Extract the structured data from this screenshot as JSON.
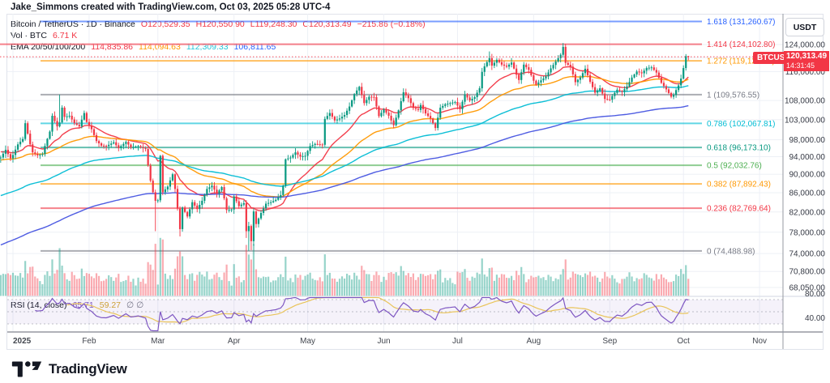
{
  "header": {
    "attribution": "Jake_Simmons created with TradingView.com, Oct 03, 2025 05:28 UTC-4"
  },
  "legend": {
    "symbol": "Bitcoin / TetherUS · 1D · Binance",
    "ohlc": {
      "o_label": "O",
      "o": "120,529.35",
      "h_label": "H",
      "h": "120,550.90",
      "l_label": "L",
      "l": "119,248.30",
      "c_label": "C",
      "c": "120,313.49",
      "change": "−215.86 (−0.18%)"
    },
    "volume": {
      "label": "Vol · BTC",
      "value": "6.71 K"
    },
    "ema": {
      "label": "EMA 20/50/100/200",
      "values": [
        {
          "text": "114,835.86",
          "color": "#F23645"
        },
        {
          "text": "114,094.63",
          "color": "#FF9800"
        },
        {
          "text": "112,309.33",
          "color": "#26C6DA"
        },
        {
          "text": "106,811.65",
          "color": "#2962FF"
        }
      ]
    }
  },
  "rsi_legend": {
    "label": "RSI (14, close)",
    "value": "65.71",
    "ma_value": "59.27",
    "empty": "∅  ∅"
  },
  "price_axis": {
    "unit": "USDT",
    "badge": {
      "symbol": "BTCUSDT",
      "price": "120,313.49",
      "time": "14:31:45"
    },
    "ticks": [
      {
        "label": "124,000.00",
        "price": 124000
      },
      {
        "label": "116,000.00",
        "price": 116000
      },
      {
        "label": "108,000.00",
        "price": 108000
      },
      {
        "label": "103,000.00",
        "price": 103000
      },
      {
        "label": "98,000.00",
        "price": 98000
      },
      {
        "label": "94,000.00",
        "price": 94000
      },
      {
        "label": "90,000.00",
        "price": 90000
      },
      {
        "label": "86,000.00",
        "price": 86000
      },
      {
        "label": "82,000.00",
        "price": 82000
      },
      {
        "label": "78,000.00",
        "price": 78000
      },
      {
        "label": "74,000.00",
        "price": 74000
      },
      {
        "label": "70,800.00",
        "price": 70800
      },
      {
        "label": "68,050.00",
        "price": 68050
      }
    ],
    "grid_extra": [
      120000
    ]
  },
  "rsi_axis": {
    "ticks": [
      {
        "label": "80.00",
        "value": 80
      },
      {
        "label": "40.00",
        "value": 40
      }
    ]
  },
  "time_axis": {
    "labels": [
      {
        "text": "2025",
        "day": 0,
        "bold": true
      },
      {
        "text": "Feb",
        "day": 31
      },
      {
        "text": "Mar",
        "day": 59
      },
      {
        "text": "Apr",
        "day": 90
      },
      {
        "text": "May",
        "day": 120
      },
      {
        "text": "Jun",
        "day": 151
      },
      {
        "text": "Jul",
        "day": 181
      },
      {
        "text": "Aug",
        "day": 212
      },
      {
        "text": "Sep",
        "day": 243
      },
      {
        "text": "Oct",
        "day": 273
      },
      {
        "text": "Nov",
        "day": 304
      }
    ]
  },
  "footer": {
    "brand": "TradingView"
  },
  "colors": {
    "up": "#089981",
    "down": "#F23645",
    "grid": "#EDF0F6",
    "axis_line": "#9598A1",
    "frame": "#E0E3EB",
    "text": "#363A45",
    "rsi_line": "#7E57C2",
    "rsi_ma": "#E9C45A",
    "band_fill": "rgba(126,87,194,0.08)",
    "band_edge": "#787B86"
  },
  "chart_data": {
    "type": "candlestick",
    "symbol": "BTCUSDT",
    "exchange": "Binance",
    "interval": "1D",
    "scale": "log",
    "last_bar": {
      "open": 120529.35,
      "high": 120550.9,
      "low": 119248.3,
      "close": 120313.49,
      "change": -215.86,
      "change_pct": -0.18,
      "volume": "6.71 K"
    },
    "fib_levels": [
      {
        "level": "1.618",
        "price": 131260.67,
        "label": "1.618 (131,260.67)",
        "color": "#2962FF",
        "full": false
      },
      {
        "level": "1.414",
        "price": 124102.8,
        "label": "1.414 (124,102.80)",
        "color": "#F23645",
        "full": true
      },
      {
        "level": "1.272",
        "price": 119120.97,
        "label": "1.272 (119,120.97)",
        "color": "#FF9800",
        "full": false
      },
      {
        "level": "1",
        "price": 109576.55,
        "label": "1 (109,576.55)",
        "color": "#787B86",
        "full": false
      },
      {
        "level": "0.786",
        "price": 102067.81,
        "label": "0.786 (102,067.81)",
        "color": "#00BCD4",
        "full": false
      },
      {
        "level": "0.618",
        "price": 96173.1,
        "label": "0.618 (96,173.10)",
        "color": "#089981",
        "full": false
      },
      {
        "level": "0.5",
        "price": 92032.76,
        "label": "0.5 (92,032.76)",
        "color": "#4CAF50",
        "full": false
      },
      {
        "level": "0.382",
        "price": 87892.43,
        "label": "0.382 (87,892.43)",
        "color": "#FF9800",
        "full": false
      },
      {
        "level": "0.236",
        "price": 82769.64,
        "label": "0.236 (82,769.64)",
        "color": "#F23645",
        "full": false
      },
      {
        "level": "0",
        "price": 74488.98,
        "label": "0 (74,488.98)",
        "color": "#787B86",
        "full": false
      }
    ],
    "current_price": 120313.49,
    "ema": {
      "periods": [
        20,
        50,
        100,
        200
      ],
      "colors": [
        "#F23645",
        "#FF9800",
        "#00BCD4",
        "#4553E0"
      ],
      "seeds": [
        95.3,
        93.2,
        85.2,
        75.4
      ],
      "last_values": [
        114835.86,
        114094.63,
        112309.33,
        106811.65
      ]
    },
    "rsi": {
      "period": 14,
      "current": 65.71,
      "ma_current": 59.27,
      "band": [
        30,
        70
      ],
      "mid": 50
    },
    "day_range": [
      -5,
      275
    ],
    "close_anchors_k": [
      [
        -5,
        93.8
      ],
      [
        -3,
        95.6
      ],
      [
        -1,
        93.6
      ],
      [
        0,
        94.4
      ],
      [
        2,
        96.9
      ],
      [
        4,
        98.2
      ],
      [
        5,
        102.1
      ],
      [
        7,
        96.9
      ],
      [
        8,
        95.0
      ],
      [
        10,
        94.3
      ],
      [
        12,
        94.6
      ],
      [
        13,
        96.5
      ],
      [
        15,
        100.0
      ],
      [
        16,
        104.0
      ],
      [
        18,
        101.3
      ],
      [
        19,
        102.3
      ],
      [
        20,
        106.1
      ],
      [
        21,
        103.7
      ],
      [
        23,
        104.0
      ],
      [
        25,
        102.1
      ],
      [
        27,
        101.3
      ],
      [
        29,
        104.7
      ],
      [
        30,
        102.4
      ],
      [
        32,
        100.6
      ],
      [
        34,
        97.7
      ],
      [
        36,
        96.6
      ],
      [
        38,
        96.5
      ],
      [
        41,
        97.4
      ],
      [
        43,
        96.0
      ],
      [
        46,
        97.5
      ],
      [
        48,
        96.2
      ],
      [
        51,
        96.5
      ],
      [
        54,
        95.8
      ],
      [
        55,
        92.0
      ],
      [
        56,
        88.6
      ],
      [
        57,
        86.1
      ],
      [
        58,
        84.3
      ],
      [
        59,
        84.4
      ],
      [
        60,
        94.2
      ],
      [
        61,
        86.1
      ],
      [
        63,
        87.3
      ],
      [
        65,
        90.0
      ],
      [
        66,
        86.8
      ],
      [
        68,
        78.6
      ],
      [
        69,
        82.9
      ],
      [
        71,
        81.1
      ],
      [
        73,
        84.0
      ],
      [
        75,
        82.6
      ],
      [
        77,
        84.3
      ],
      [
        79,
        86.8
      ],
      [
        81,
        87.5
      ],
      [
        83,
        85.8
      ],
      [
        85,
        87.2
      ],
      [
        87,
        82.4
      ],
      [
        89,
        82.5
      ],
      [
        90,
        85.2
      ],
      [
        92,
        83.2
      ],
      [
        94,
        83.8
      ],
      [
        95,
        78.2
      ],
      [
        96,
        79.2
      ],
      [
        97,
        76.3
      ],
      [
        98,
        82.1
      ],
      [
        99,
        79.6
      ],
      [
        101,
        81.8
      ],
      [
        103,
        83.7
      ],
      [
        105,
        84.0
      ],
      [
        107,
        84.5
      ],
      [
        109,
        85.5
      ],
      [
        110,
        87.5
      ],
      [
        111,
        93.4
      ],
      [
        113,
        93.8
      ],
      [
        115,
        95.0
      ],
      [
        117,
        94.0
      ],
      [
        119,
        94.2
      ],
      [
        121,
        96.5
      ],
      [
        123,
        97.0
      ],
      [
        126,
        96.8
      ],
      [
        127,
        103.2
      ],
      [
        129,
        104.7
      ],
      [
        131,
        102.8
      ],
      [
        133,
        103.3
      ],
      [
        135,
        104.2
      ],
      [
        137,
        106.4
      ],
      [
        139,
        109.7
      ],
      [
        141,
        111.7
      ],
      [
        143,
        107.3
      ],
      [
        145,
        109.0
      ],
      [
        147,
        108.9
      ],
      [
        149,
        103.9
      ],
      [
        151,
        105.6
      ],
      [
        153,
        104.0
      ],
      [
        155,
        101.6
      ],
      [
        157,
        105.4
      ],
      [
        159,
        110.2
      ],
      [
        161,
        108.6
      ],
      [
        163,
        106.0
      ],
      [
        165,
        105.5
      ],
      [
        166,
        106.8
      ],
      [
        168,
        104.6
      ],
      [
        170,
        103.3
      ],
      [
        172,
        100.9
      ],
      [
        174,
        106.1
      ],
      [
        176,
        107.0
      ],
      [
        178,
        107.3
      ],
      [
        180,
        107.6
      ],
      [
        182,
        105.7
      ],
      [
        184,
        109.6
      ],
      [
        186,
        108.0
      ],
      [
        188,
        108.9
      ],
      [
        190,
        111.3
      ],
      [
        191,
        115.9
      ],
      [
        192,
        117.5
      ],
      [
        194,
        119.9
      ],
      [
        195,
        117.7
      ],
      [
        197,
        119.4
      ],
      [
        199,
        118.0
      ],
      [
        201,
        117.4
      ],
      [
        203,
        118.6
      ],
      [
        205,
        115.1
      ],
      [
        206,
        113.6
      ],
      [
        208,
        118.0
      ],
      [
        210,
        116.5
      ],
      [
        212,
        113.4
      ],
      [
        213,
        112.3
      ],
      [
        215,
        113.5
      ],
      [
        217,
        114.6
      ],
      [
        219,
        116.9
      ],
      [
        221,
        118.9
      ],
      [
        223,
        120.9
      ],
      [
        224,
        123.3
      ],
      [
        225,
        118.5
      ],
      [
        227,
        117.4
      ],
      [
        229,
        113.0
      ],
      [
        231,
        114.3
      ],
      [
        233,
        116.8
      ],
      [
        235,
        113.1
      ],
      [
        237,
        110.1
      ],
      [
        239,
        111.3
      ],
      [
        241,
        108.4
      ],
      [
        243,
        108.2
      ],
      [
        244,
        109.2
      ],
      [
        246,
        110.9
      ],
      [
        248,
        110.3
      ],
      [
        250,
        111.8
      ],
      [
        252,
        114.3
      ],
      [
        254,
        116.0
      ],
      [
        256,
        115.5
      ],
      [
        258,
        117.0
      ],
      [
        260,
        117.2
      ],
      [
        262,
        115.7
      ],
      [
        264,
        112.8
      ],
      [
        266,
        111.0
      ],
      [
        268,
        109.0
      ],
      [
        269,
        109.5
      ],
      [
        271,
        112.1
      ],
      [
        272,
        114.0
      ],
      [
        273,
        117.0
      ],
      [
        274,
        120.5
      ],
      [
        275,
        120.31
      ]
    ],
    "wick_overrides_k": {
      "19": {
        "h": 109.58
      },
      "58": {
        "l": 78.2
      },
      "68": {
        "l": 77.2
      },
      "95": {
        "l": 76.9
      },
      "96": {
        "l": 74.49
      },
      "97": {
        "l": 74.62
      },
      "141": {
        "h": 112.0
      },
      "194": {
        "h": 121.9
      },
      "224": {
        "h": 124.46
      },
      "268": {
        "l": 108.55
      },
      "275": {
        "o": 120.53,
        "h": 120.55,
        "l": 119.25
      }
    }
  }
}
